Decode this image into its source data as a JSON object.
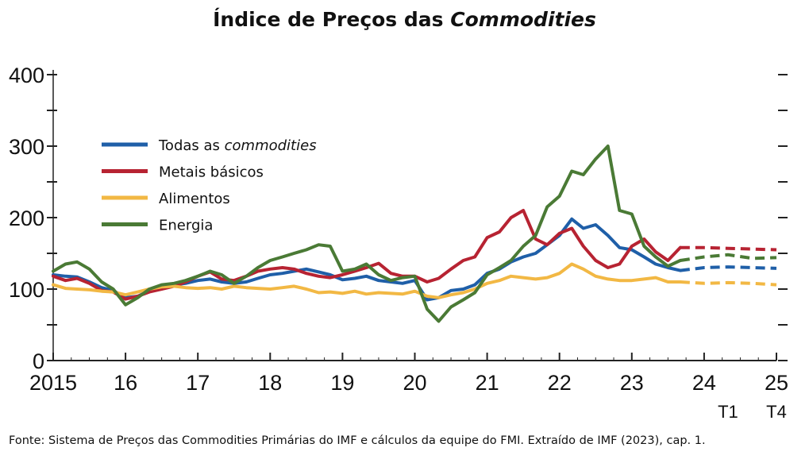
{
  "title_parts": [
    "Índice de Preços das ",
    "Commodities"
  ],
  "source": "Fonte: Sistema de Preços das Commodities Primárias do IMF e cálculos da equipe do FMI. Extraído de IMF (2023), cap. 1.",
  "chart_data": {
    "type": "line",
    "title": "Índice de Preços das Commodities",
    "ylim": [
      0,
      400
    ],
    "xlim": [
      2015,
      2025
    ],
    "y_ticks": [
      0,
      100,
      200,
      300,
      400
    ],
    "x_ticks": [
      2015,
      2016,
      2017,
      2018,
      2019,
      2020,
      2021,
      2022,
      2023,
      2024,
      2025
    ],
    "x_tick_labels": [
      "2015",
      "16",
      "17",
      "18",
      "19",
      "20",
      "21",
      "22",
      "23",
      "24",
      "25"
    ],
    "x_sub_labels": [
      {
        "x": 2024.33,
        "label": "T1"
      },
      {
        "x": 2025,
        "label": "T4"
      }
    ],
    "forecast_start": 2023.67,
    "legend_position": "upper-left",
    "series": [
      {
        "name": "Todas as commodities",
        "color": "#1f5fa8",
        "x": [
          2015,
          2015.17,
          2015.33,
          2015.5,
          2015.67,
          2015.83,
          2016,
          2016.17,
          2016.33,
          2016.5,
          2016.67,
          2016.83,
          2017,
          2017.17,
          2017.33,
          2017.5,
          2017.67,
          2017.83,
          2018,
          2018.17,
          2018.33,
          2018.5,
          2018.67,
          2018.83,
          2019,
          2019.17,
          2019.33,
          2019.5,
          2019.67,
          2019.83,
          2020,
          2020.17,
          2020.33,
          2020.5,
          2020.67,
          2020.83,
          2021,
          2021.17,
          2021.33,
          2021.5,
          2021.67,
          2021.83,
          2022,
          2022.17,
          2022.33,
          2022.5,
          2022.67,
          2022.83,
          2023,
          2023.17,
          2023.33,
          2023.5,
          2023.67,
          2024,
          2024.33,
          2024.67,
          2025
        ],
        "y": [
          120,
          118,
          117,
          110,
          102,
          98,
          88,
          90,
          98,
          104,
          106,
          108,
          112,
          114,
          110,
          108,
          110,
          115,
          120,
          122,
          125,
          128,
          124,
          120,
          113,
          115,
          118,
          112,
          110,
          108,
          112,
          85,
          88,
          98,
          100,
          106,
          122,
          128,
          138,
          145,
          150,
          162,
          175,
          198,
          185,
          190,
          175,
          158,
          155,
          145,
          135,
          130,
          126,
          130,
          131,
          130,
          129
        ],
        "forecast_from_index": 52
      },
      {
        "name": "Metais básicos",
        "color": "#b72332",
        "x": [
          2015,
          2015.17,
          2015.33,
          2015.5,
          2015.67,
          2015.83,
          2016,
          2016.17,
          2016.33,
          2016.5,
          2016.67,
          2016.83,
          2017,
          2017.17,
          2017.33,
          2017.5,
          2017.67,
          2017.83,
          2018,
          2018.17,
          2018.33,
          2018.5,
          2018.67,
          2018.83,
          2019,
          2019.17,
          2019.33,
          2019.5,
          2019.67,
          2019.83,
          2020,
          2020.17,
          2020.33,
          2020.5,
          2020.67,
          2020.83,
          2021,
          2021.17,
          2021.33,
          2021.5,
          2021.67,
          2021.83,
          2022,
          2022.17,
          2022.33,
          2022.5,
          2022.67,
          2022.83,
          2023,
          2023.17,
          2023.33,
          2023.5,
          2023.67,
          2024,
          2024.33,
          2024.67,
          2025
        ],
        "y": [
          118,
          112,
          115,
          108,
          98,
          96,
          86,
          90,
          96,
          100,
          104,
          110,
          118,
          124,
          114,
          112,
          118,
          125,
          128,
          130,
          128,
          122,
          118,
          116,
          120,
          125,
          130,
          136,
          122,
          118,
          118,
          110,
          115,
          128,
          140,
          145,
          172,
          180,
          200,
          210,
          170,
          162,
          178,
          185,
          160,
          140,
          130,
          135,
          160,
          170,
          152,
          140,
          158,
          158,
          157,
          156,
          155
        ],
        "forecast_from_index": 52
      },
      {
        "name": "Alimentos",
        "color": "#f2b844",
        "x": [
          2015,
          2015.17,
          2015.33,
          2015.5,
          2015.67,
          2015.83,
          2016,
          2016.17,
          2016.33,
          2016.5,
          2016.67,
          2016.83,
          2017,
          2017.17,
          2017.33,
          2017.5,
          2017.67,
          2017.83,
          2018,
          2018.17,
          2018.33,
          2018.5,
          2018.67,
          2018.83,
          2019,
          2019.17,
          2019.33,
          2019.5,
          2019.67,
          2019.83,
          2020,
          2020.17,
          2020.33,
          2020.5,
          2020.67,
          2020.83,
          2021,
          2021.17,
          2021.33,
          2021.5,
          2021.67,
          2021.83,
          2022,
          2022.17,
          2022.33,
          2022.5,
          2022.67,
          2022.83,
          2023,
          2023.17,
          2023.33,
          2023.5,
          2023.67,
          2024,
          2024.33,
          2024.67,
          2025
        ],
        "y": [
          106,
          101,
          100,
          99,
          97,
          96,
          92,
          96,
          100,
          103,
          104,
          102,
          101,
          102,
          100,
          104,
          102,
          101,
          100,
          102,
          104,
          100,
          95,
          96,
          94,
          97,
          93,
          95,
          94,
          93,
          97,
          90,
          88,
          92,
          95,
          100,
          108,
          112,
          118,
          116,
          114,
          116,
          122,
          135,
          128,
          118,
          114,
          112,
          112,
          114,
          116,
          110,
          110,
          108,
          109,
          108,
          106
        ],
        "forecast_from_index": 52
      },
      {
        "name": "Energia",
        "color": "#4a7a35",
        "x": [
          2015,
          2015.17,
          2015.33,
          2015.5,
          2015.67,
          2015.83,
          2016,
          2016.17,
          2016.33,
          2016.5,
          2016.67,
          2016.83,
          2017,
          2017.17,
          2017.33,
          2017.5,
          2017.67,
          2017.83,
          2018,
          2018.17,
          2018.33,
          2018.5,
          2018.67,
          2018.83,
          2019,
          2019.17,
          2019.33,
          2019.5,
          2019.67,
          2019.83,
          2020,
          2020.17,
          2020.33,
          2020.5,
          2020.67,
          2020.83,
          2021,
          2021.17,
          2021.33,
          2021.5,
          2021.67,
          2021.83,
          2022,
          2022.17,
          2022.33,
          2022.5,
          2022.67,
          2022.83,
          2023,
          2023.17,
          2023.33,
          2023.5,
          2023.67,
          2024,
          2024.33,
          2024.67,
          2025
        ],
        "y": [
          125,
          135,
          138,
          128,
          110,
          100,
          78,
          88,
          100,
          106,
          108,
          112,
          118,
          125,
          120,
          108,
          118,
          130,
          140,
          145,
          150,
          155,
          162,
          160,
          125,
          128,
          135,
          120,
          112,
          116,
          118,
          72,
          55,
          75,
          85,
          95,
          120,
          130,
          140,
          160,
          175,
          215,
          230,
          265,
          260,
          282,
          300,
          210,
          205,
          160,
          145,
          132,
          140,
          145,
          148,
          143,
          144
        ],
        "forecast_from_index": 52
      }
    ],
    "legend_entries": [
      {
        "text": "Todas as ",
        "italic": "commodities",
        "color": "#1f5fa8"
      },
      {
        "text": "Metais básicos",
        "italic": "",
        "color": "#b72332"
      },
      {
        "text": "Alimentos",
        "italic": "",
        "color": "#f2b844"
      },
      {
        "text": "Energia",
        "italic": "",
        "color": "#4a7a35"
      }
    ]
  }
}
